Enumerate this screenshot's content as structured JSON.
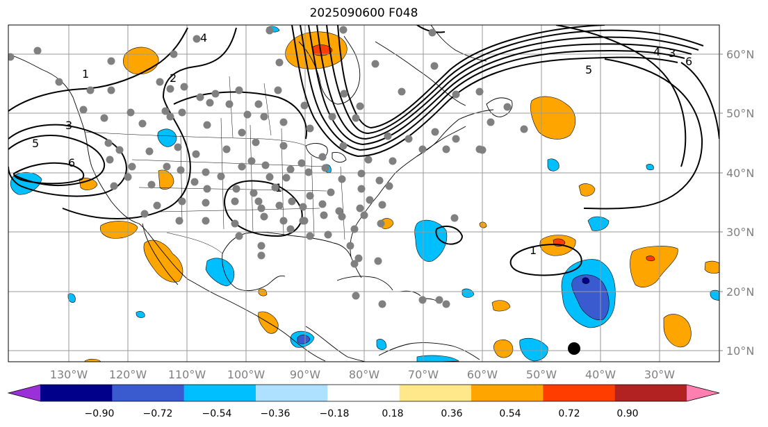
{
  "title": "2025090600 F048",
  "lat_labels": [
    "60°N",
    "50°N",
    "40°N",
    "30°N",
    "20°N",
    "10°N"
  ],
  "lon_labels": [
    "130°W",
    "120°W",
    "110°W",
    "100°W",
    "90°W",
    "80°W",
    "70°W",
    "60°W",
    "50°W",
    "40°W",
    "30°W"
  ],
  "colorbar": {
    "ticks": [
      "−0.90",
      "−0.72",
      "−0.54",
      "−0.36",
      "−0.18",
      "0.18",
      "0.36",
      "0.54",
      "0.72",
      "0.90"
    ],
    "colors": [
      "#9b30d8",
      "#00008b",
      "#3a5bd0",
      "#00bfff",
      "#aee0ff",
      "#ffffff",
      "#ffe88a",
      "#ffa500",
      "#ff3d00",
      "#b22222",
      "#ff80b0"
    ]
  },
  "contour_labels": [
    "1",
    "2",
    "3",
    "4",
    "5",
    "6",
    "1",
    "5",
    "4",
    "3",
    "6",
    "1"
  ],
  "colors": {
    "positive": "#ffa500",
    "strong_positive": "#ff3d00",
    "negative": "#00bfff",
    "strong_negative": "#3a5bd0",
    "station": "#808080"
  }
}
